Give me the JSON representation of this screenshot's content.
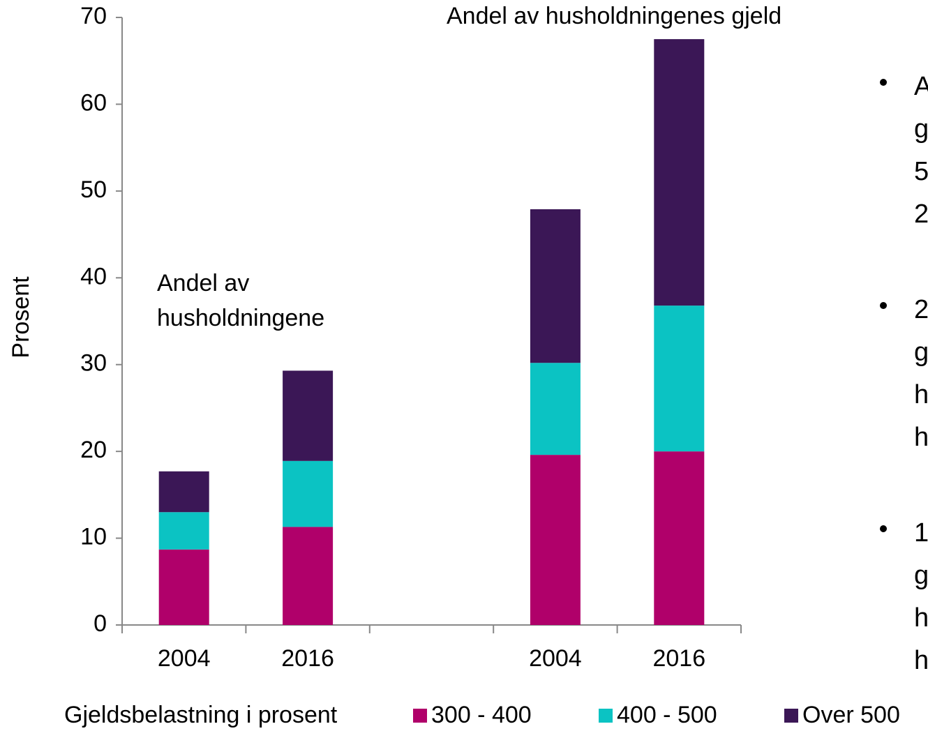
{
  "chart_data": {
    "type": "stacked_bar",
    "y_axis_label": "Prosent",
    "categories": [
      "2004",
      "2016",
      null,
      "2004",
      "2016"
    ],
    "series": [
      {
        "name": "300 - 400",
        "color": "#b0006a",
        "values": [
          8.7,
          11.3,
          null,
          19.6,
          20.0
        ]
      },
      {
        "name": "400 - 500",
        "color": "#0bc3c3",
        "values": [
          4.3,
          7.6,
          null,
          10.6,
          16.8
        ]
      },
      {
        "name": "Over 500",
        "color": "#3b1756",
        "values": [
          4.7,
          10.4,
          null,
          17.7,
          30.7
        ]
      }
    ],
    "ylim": [
      0,
      70
    ],
    "yticks": [
      0,
      10,
      20,
      30,
      40,
      50,
      60,
      70
    ],
    "legend_title": "Gjeldsbelastning i prosent",
    "legend_position": "bottom",
    "annotations": [
      [
        "Andel av",
        "husholdningene"
      ],
      [
        "Andel av husholdningenes gjeld"
      ]
    ],
    "bullets": [
      [
        "A",
        "g",
        "5",
        "2"
      ],
      [
        "2",
        "g",
        "h",
        "h"
      ],
      [
        "1",
        "g",
        "h",
        "h"
      ]
    ]
  }
}
